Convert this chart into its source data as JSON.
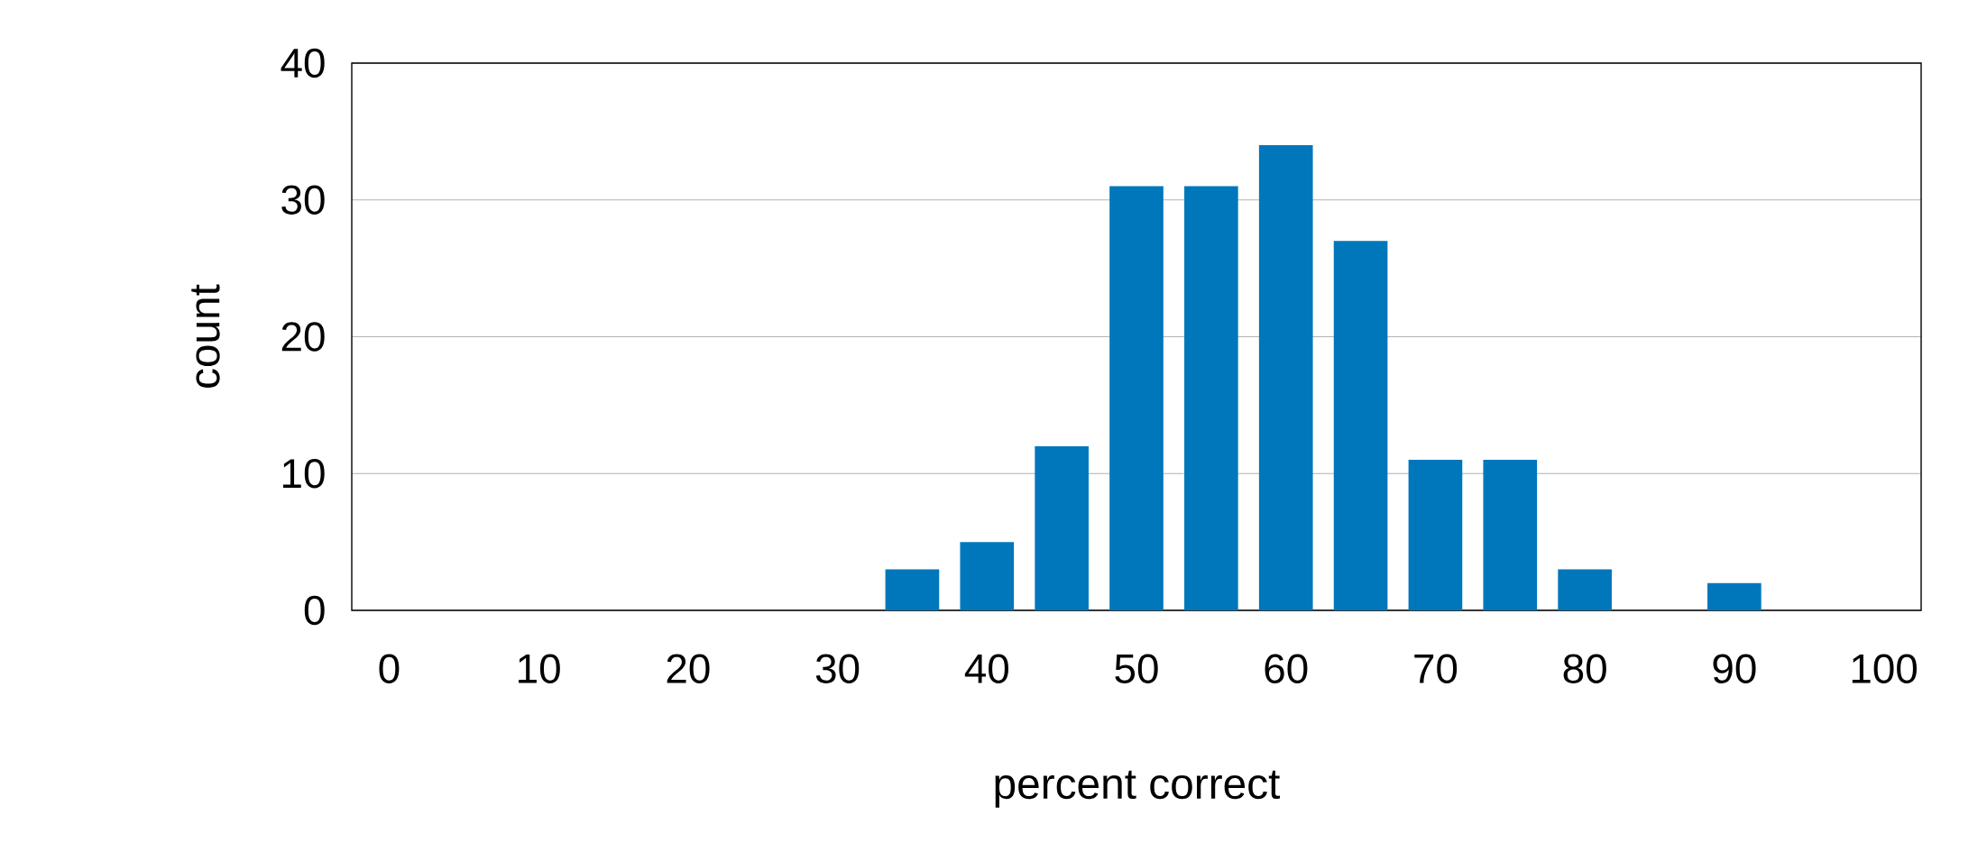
{
  "chart_data": {
    "type": "bar",
    "xlabel": "percent correct",
    "ylabel": "count",
    "categories": [
      "0",
      null,
      "10",
      null,
      "20",
      null,
      "30",
      null,
      "40",
      null,
      "50",
      null,
      "60",
      null,
      "70",
      null,
      "80",
      null,
      "90",
      null,
      "100"
    ],
    "values": [
      0,
      0,
      0,
      0,
      0,
      0,
      0,
      3,
      5,
      12,
      31,
      31,
      34,
      27,
      11,
      11,
      3,
      0,
      2,
      0,
      0
    ],
    "color": "#0077bb",
    "ylim": [
      0,
      40
    ],
    "yticks": [
      0,
      10,
      20,
      30,
      40
    ],
    "grid": "y"
  }
}
